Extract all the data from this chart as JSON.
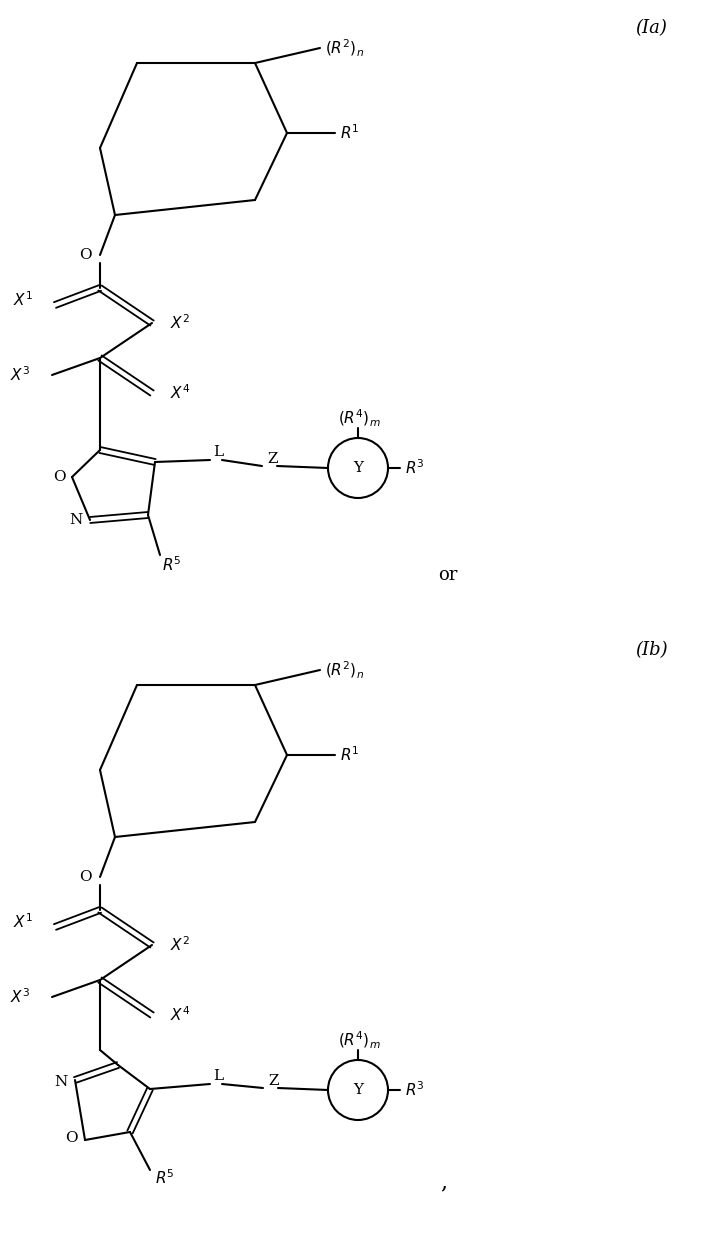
{
  "bg_color": "#ffffff",
  "line_color": "#000000",
  "text_color": "#000000",
  "fig_width": 7.24,
  "fig_height": 12.44,
  "label_Ia": "(Ia)",
  "label_Ib": "(Ib)",
  "or_text": "or",
  "comma_text": ","
}
